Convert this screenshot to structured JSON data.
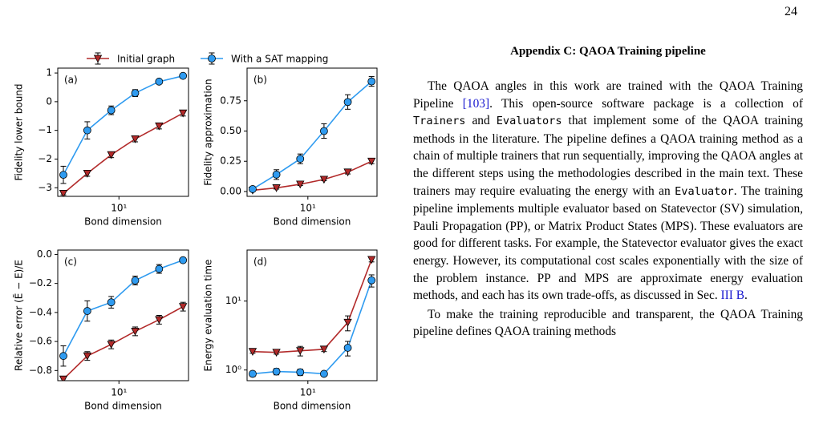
{
  "page_number": "24",
  "chart_data": [
    {
      "type": "line",
      "panel_label": "(a)",
      "x_label": "Bond dimension",
      "y_label": "Fidelity lower bound",
      "xscale": "log",
      "xlim": [
        1.7,
        75
      ],
      "xticks": [
        {
          "value": 10,
          "label": "10¹"
        }
      ],
      "ylim": [
        -3.3,
        1.17
      ],
      "yticks": [
        {
          "value": -3,
          "label": "−3"
        },
        {
          "value": -2,
          "label": "−2"
        },
        {
          "value": -1,
          "label": "−1"
        },
        0,
        1
      ],
      "x": [
        2,
        4,
        8,
        16,
        32,
        64
      ],
      "series": [
        {
          "name": "Initial graph",
          "color": "#b22a2a",
          "marker": "v",
          "values": [
            -3.2,
            -2.5,
            -1.85,
            -1.3,
            -0.85,
            -0.4
          ],
          "errors": [
            0.05,
            0.1,
            0.1,
            0.1,
            0.1,
            0.1
          ]
        },
        {
          "name": "With a SAT mapping",
          "color": "#2f9bf0",
          "marker": "o",
          "values": [
            -2.55,
            -1.0,
            -0.3,
            0.3,
            0.7,
            0.9
          ],
          "errors": [
            0.3,
            0.3,
            0.15,
            0.12,
            0.05,
            0.03
          ]
        }
      ]
    },
    {
      "type": "line",
      "panel_label": "(b)",
      "x_label": "Bond dimension",
      "y_label": "Fidelity approximation",
      "xscale": "log",
      "xlim": [
        1.7,
        75
      ],
      "xticks": [
        {
          "value": 10,
          "label": "10¹"
        }
      ],
      "ylim": [
        -0.04,
        1.02
      ],
      "yticks": [
        {
          "value": 0,
          "label": "0.00"
        },
        {
          "value": 0.25,
          "label": "0.25"
        },
        {
          "value": 0.5,
          "label": "0.50"
        },
        {
          "value": 0.75,
          "label": "0.75"
        }
      ],
      "x": [
        2,
        4,
        8,
        16,
        32,
        64
      ],
      "series": [
        {
          "color": "#b22a2a",
          "marker": "v",
          "values": [
            0.01,
            0.03,
            0.06,
            0.1,
            0.16,
            0.25
          ],
          "errors": [
            0.005,
            0.01,
            0.01,
            0.01,
            0.015,
            0.02
          ]
        },
        {
          "color": "#2f9bf0",
          "marker": "o",
          "values": [
            0.02,
            0.14,
            0.27,
            0.5,
            0.74,
            0.91
          ],
          "errors": [
            0.01,
            0.04,
            0.04,
            0.06,
            0.06,
            0.04
          ]
        }
      ]
    },
    {
      "type": "line",
      "panel_label": "(c)",
      "x_label": "Bond dimension",
      "y_label": "Relative error (Ẽ − E)/E",
      "xscale": "log",
      "xlim": [
        1.7,
        75
      ],
      "xticks": [
        {
          "value": 10,
          "label": "10¹"
        }
      ],
      "ylim": [
        -0.87,
        0.03
      ],
      "yticks": [
        {
          "value": -0.8,
          "label": "−0.8"
        },
        {
          "value": -0.6,
          "label": "−0.6"
        },
        {
          "value": -0.4,
          "label": "−0.4"
        },
        {
          "value": -0.2,
          "label": "−0.2"
        },
        {
          "value": 0,
          "label": "0.0"
        }
      ],
      "x": [
        2,
        4,
        8,
        16,
        32,
        64
      ],
      "series": [
        {
          "color": "#b22a2a",
          "marker": "v",
          "values": [
            -0.86,
            -0.7,
            -0.62,
            -0.53,
            -0.45,
            -0.36
          ],
          "errors": [
            0.01,
            0.03,
            0.03,
            0.03,
            0.03,
            0.03
          ]
        },
        {
          "color": "#2f9bf0",
          "marker": "o",
          "values": [
            -0.7,
            -0.39,
            -0.33,
            -0.18,
            -0.1,
            -0.04
          ],
          "errors": [
            0.07,
            0.07,
            0.04,
            0.03,
            0.03,
            0.01
          ]
        }
      ]
    },
    {
      "type": "line",
      "panel_label": "(d)",
      "x_label": "Bond dimension",
      "y_label": "Energy evaluation time",
      "xscale": "log",
      "xlim": [
        1.7,
        75
      ],
      "xticks": [
        {
          "value": 10,
          "label": "10¹"
        }
      ],
      "yscale": "log",
      "ylim": [
        0.7,
        55
      ],
      "yticks": [
        {
          "value": 1,
          "label": "10⁰"
        },
        {
          "value": 10,
          "label": "10¹"
        }
      ],
      "x": [
        2,
        4,
        8,
        16,
        32,
        64
      ],
      "series": [
        {
          "color": "#b22a2a",
          "marker": "v",
          "values": [
            1.85,
            1.8,
            1.9,
            2.0,
            4.9,
            40
          ],
          "errors": [
            0.1,
            0.1,
            0.3,
            0.15,
            1.2,
            3
          ]
        },
        {
          "color": "#2f9bf0",
          "marker": "o",
          "values": [
            0.88,
            0.95,
            0.93,
            0.88,
            2.1,
            20
          ],
          "errors": [
            0.08,
            0.1,
            0.1,
            0.06,
            0.5,
            4
          ]
        }
      ]
    }
  ],
  "appendix": {
    "heading": "Appendix C: QAOA Training pipeline",
    "paragraphs": [
      [
        {
          "text": "The QAOA angles in this work are trained with the QAOA Training Pipeline "
        },
        {
          "text": "[103]",
          "style": "link"
        },
        {
          "text": ". This open-source software package is a collection of "
        },
        {
          "text": "Trainers",
          "style": "code"
        },
        {
          "text": " and "
        },
        {
          "text": "Evaluators",
          "style": "code"
        },
        {
          "text": " that implement some of the QAOA training methods in the literature. The pipeline defines a QAOA training method as a chain of multiple trainers that run sequentially, improving the QAOA angles at the different steps using the methodologies described in the main text. These trainers may require evaluating the energy with an "
        },
        {
          "text": "Evaluator",
          "style": "code"
        },
        {
          "text": ". The training pipeline implements multiple evaluator based on Statevector (SV) simulation, Pauli Propagation (PP), or Matrix Product States (MPS). These evaluators are good for different tasks. For example, the Statevector evaluator gives the exact energy. However, its computational cost scales exponentially with the size of the problem instance. PP and MPS are approximate energy evaluation methods, and each has its own trade-offs, as discussed in Sec. "
        },
        {
          "text": "III B",
          "style": "link"
        },
        {
          "text": "."
        }
      ],
      [
        {
          "text": "To make the training reproducible and transparent, the QAOA Training pipeline defines QAOA training methods"
        }
      ]
    ]
  }
}
